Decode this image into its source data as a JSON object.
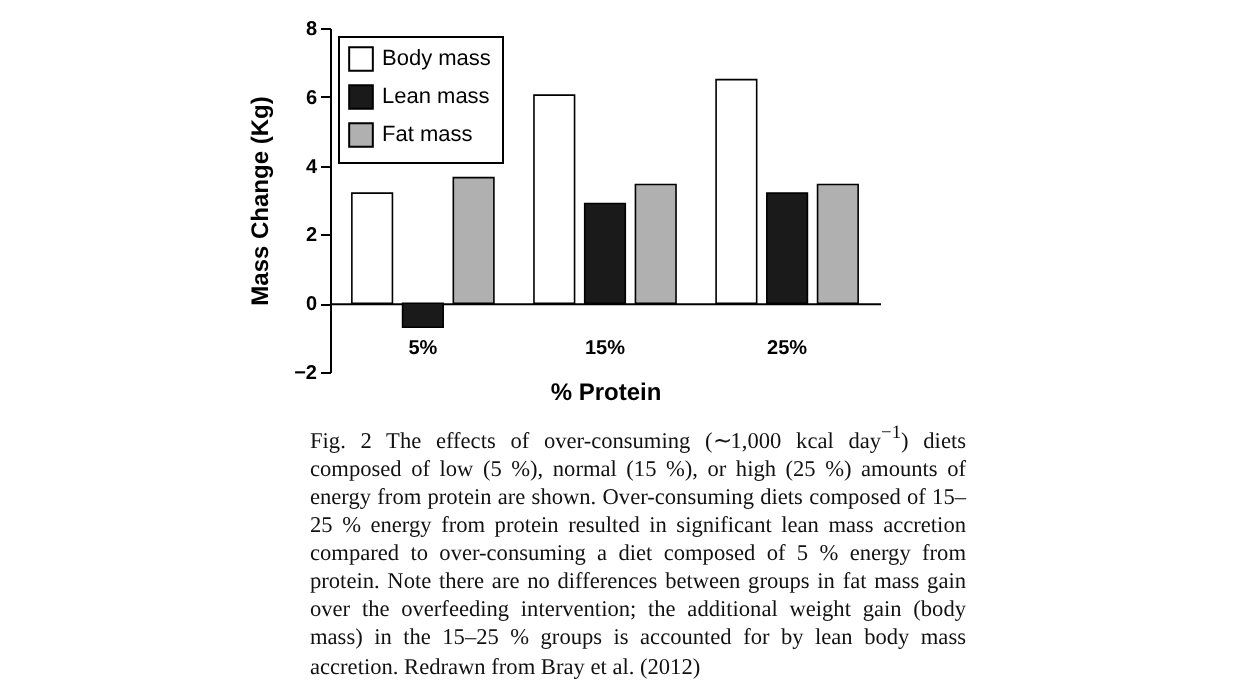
{
  "chart_data": {
    "type": "bar",
    "xlabel": "% Protein",
    "ylabel": "Mass Change (Kg)",
    "categories": [
      "5%",
      "15%",
      "25%"
    ],
    "series": [
      {
        "name": "Body mass",
        "color": "#ffffff",
        "values": [
          3.2,
          6.05,
          6.5
        ]
      },
      {
        "name": "Lean mass",
        "color": "#1a1a1a",
        "values": [
          -0.7,
          2.9,
          3.2
        ]
      },
      {
        "name": "Fat mass",
        "color": "#b0b0b0",
        "values": [
          3.65,
          3.45,
          3.45
        ]
      }
    ],
    "ylim": [
      -2,
      8
    ],
    "yticks": [
      -2,
      0,
      2,
      4,
      6,
      8
    ],
    "grid": false,
    "legend": "top left",
    "annotations": [
      "Fig. 2 The effects of over-consuming (∼1,000 kcal day$^{−1}$) diets composed of low (5 %), normal (15 %), or high (25 %) amounts of energy from protein are shown. Over-consuming diets composed of 15–25 % energy from protein resulted in significant lean mass accretion compared to over-consuming a diet composed of 5 % energy from protein. Note there are no differences between groups in fat mass gain over the overfeeding intervention; the additional weight gain (body mass) in the 15–25 % groups is accounted for by lean body mass accretion. Redrawn from Bray et al. (2012)"
    ]
  }
}
